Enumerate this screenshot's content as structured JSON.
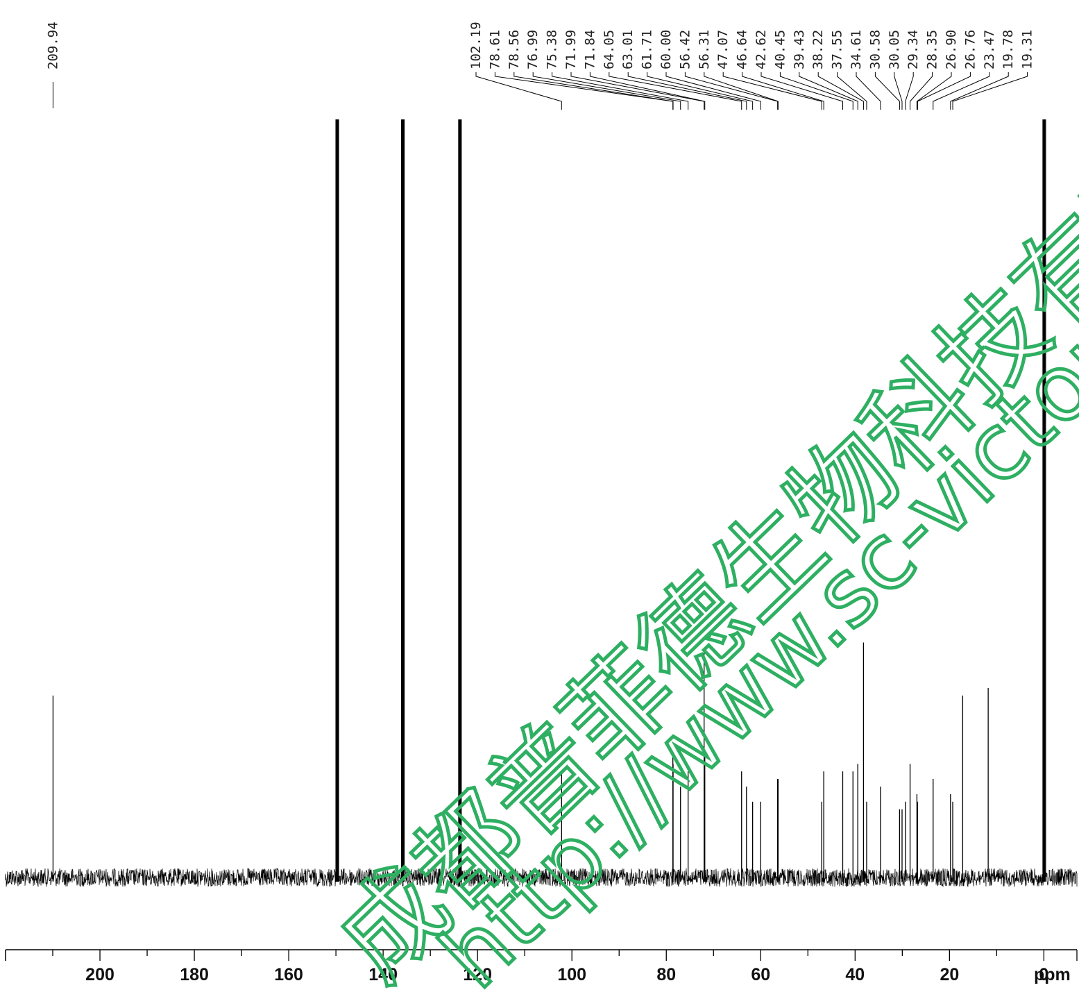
{
  "chart_data": {
    "type": "line",
    "title": "",
    "xlabel": "ppm",
    "ylabel": "",
    "xlim": [
      220,
      -7
    ],
    "x_reversed": true,
    "x_ticks": [
      200,
      180,
      160,
      140,
      120,
      100,
      80,
      60,
      40,
      20,
      0
    ],
    "x_tick_labels": [
      "200",
      "180",
      "160",
      "140",
      "120",
      "100",
      "80",
      "60",
      "40",
      "20",
      "0"
    ],
    "peak_labels": [
      "209.94",
      "102.19",
      "78.61",
      "78.56",
      "76.99",
      "75.38",
      "71.99",
      "71.84",
      "64.05",
      "63.01",
      "61.71",
      "60.00",
      "56.42",
      "56.31",
      "47.07",
      "46.64",
      "42.62",
      "40.45",
      "39.43",
      "38.22",
      "37.55",
      "34.61",
      "30.58",
      "30.05",
      "29.34",
      "28.35",
      "26.90",
      "26.76",
      "23.47",
      "19.78",
      "19.31"
    ],
    "peaks": [
      {
        "ppm": 209.94,
        "intensity": 0.24
      },
      {
        "ppm": 149.8,
        "intensity": 1.0
      },
      {
        "ppm": 135.9,
        "intensity": 1.0
      },
      {
        "ppm": 123.8,
        "intensity": 1.0
      },
      {
        "ppm": 102.19,
        "intensity": 0.14
      },
      {
        "ppm": 78.61,
        "intensity": 0.16
      },
      {
        "ppm": 78.56,
        "intensity": 0.15
      },
      {
        "ppm": 76.99,
        "intensity": 0.12
      },
      {
        "ppm": 75.38,
        "intensity": 0.14
      },
      {
        "ppm": 71.99,
        "intensity": 0.3
      },
      {
        "ppm": 71.84,
        "intensity": 0.16
      },
      {
        "ppm": 64.05,
        "intensity": 0.14
      },
      {
        "ppm": 63.01,
        "intensity": 0.12
      },
      {
        "ppm": 61.71,
        "intensity": 0.1
      },
      {
        "ppm": 60.0,
        "intensity": 0.1
      },
      {
        "ppm": 56.42,
        "intensity": 0.13
      },
      {
        "ppm": 56.31,
        "intensity": 0.13
      },
      {
        "ppm": 47.07,
        "intensity": 0.1
      },
      {
        "ppm": 46.64,
        "intensity": 0.14
      },
      {
        "ppm": 42.62,
        "intensity": 0.14
      },
      {
        "ppm": 40.45,
        "intensity": 0.14
      },
      {
        "ppm": 39.43,
        "intensity": 0.15
      },
      {
        "ppm": 38.22,
        "intensity": 0.31
      },
      {
        "ppm": 37.55,
        "intensity": 0.1
      },
      {
        "ppm": 34.61,
        "intensity": 0.12
      },
      {
        "ppm": 30.58,
        "intensity": 0.09
      },
      {
        "ppm": 30.05,
        "intensity": 0.09
      },
      {
        "ppm": 29.34,
        "intensity": 0.1
      },
      {
        "ppm": 28.35,
        "intensity": 0.15
      },
      {
        "ppm": 26.9,
        "intensity": 0.11
      },
      {
        "ppm": 26.76,
        "intensity": 0.1
      },
      {
        "ppm": 23.47,
        "intensity": 0.13
      },
      {
        "ppm": 19.78,
        "intensity": 0.11
      },
      {
        "ppm": 19.31,
        "intensity": 0.1
      },
      {
        "ppm": 17.2,
        "intensity": 0.24
      },
      {
        "ppm": 11.8,
        "intensity": 0.25
      },
      {
        "ppm": 0.0,
        "intensity": 1.0
      }
    ],
    "grid": false,
    "legend": "none",
    "line_color": "#000000",
    "watermark": {
      "text_cn": "成都普菲德生物科技有限",
      "text_url": "http://www.sc-victory.co",
      "color": "#2eaf62"
    }
  }
}
